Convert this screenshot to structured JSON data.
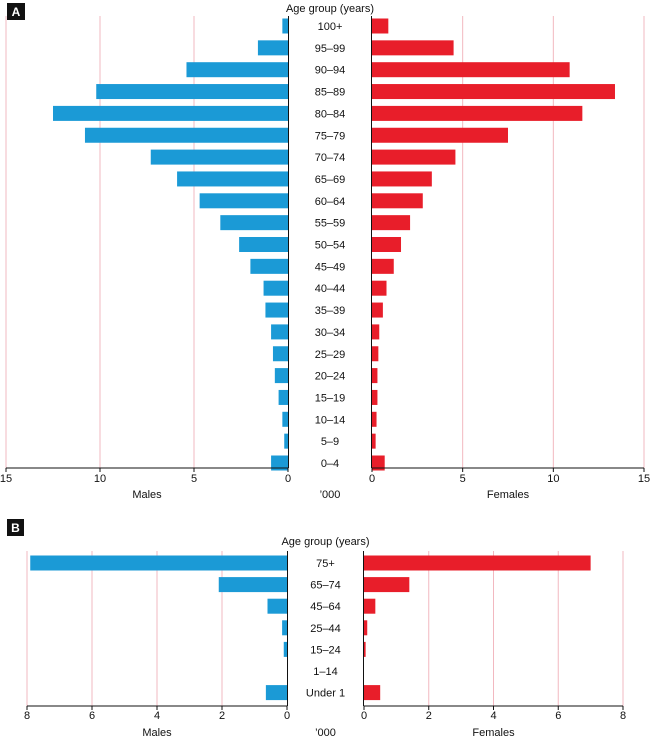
{
  "chart_data": [
    {
      "panel": "A",
      "type": "bar",
      "orientation": "horizontal",
      "layout": "population-pyramid",
      "title": "Age group (years)",
      "categories": [
        "100+",
        "95–99",
        "90–94",
        "85–89",
        "80–84",
        "75–79",
        "70–74",
        "65–69",
        "60–64",
        "55–59",
        "50–54",
        "45–49",
        "40–44",
        "35–39",
        "30–34",
        "25–29",
        "20–24",
        "15–19",
        "10–14",
        "5–9",
        "0–4"
      ],
      "series": [
        {
          "name": "Males",
          "color": "#1b9ad6",
          "values": [
            0.3,
            1.6,
            5.4,
            10.2,
            12.5,
            10.8,
            7.3,
            5.9,
            4.7,
            3.6,
            2.6,
            2.0,
            1.3,
            1.2,
            0.9,
            0.8,
            0.7,
            0.5,
            0.3,
            0.2,
            0.9
          ]
        },
        {
          "name": "Females",
          "color": "#e81e2a",
          "values": [
            0.9,
            4.5,
            10.9,
            13.4,
            11.6,
            7.5,
            4.6,
            3.3,
            2.8,
            2.1,
            1.6,
            1.2,
            0.8,
            0.6,
            0.4,
            0.35,
            0.3,
            0.3,
            0.25,
            0.2,
            0.7
          ]
        }
      ],
      "xlim": [
        0,
        15
      ],
      "ticks": [
        0,
        5,
        10,
        15
      ],
      "left_label": "Males",
      "right_label": "Females",
      "center_label": "’000",
      "grid": true
    },
    {
      "panel": "B",
      "type": "bar",
      "orientation": "horizontal",
      "layout": "population-pyramid",
      "title": "Age group (years)",
      "categories": [
        "75+",
        "65–74",
        "45–64",
        "25–44",
        "15–24",
        "1–14",
        "Under 1"
      ],
      "series": [
        {
          "name": "Males",
          "color": "#1b9ad6",
          "values": [
            7.9,
            2.1,
            0.6,
            0.15,
            0.1,
            0.0,
            0.65
          ]
        },
        {
          "name": "Females",
          "color": "#e81e2a",
          "values": [
            7.0,
            1.4,
            0.35,
            0.1,
            0.05,
            0.0,
            0.5
          ]
        }
      ],
      "xlim": [
        0,
        8
      ],
      "ticks": [
        0,
        2,
        4,
        6,
        8
      ],
      "left_label": "Males",
      "right_label": "Females",
      "center_label": "’000",
      "grid": true
    }
  ],
  "colors": {
    "males": "#1b9ad6",
    "females": "#e81e2a",
    "grid": "#f2b8c0",
    "axis": "#111111"
  }
}
